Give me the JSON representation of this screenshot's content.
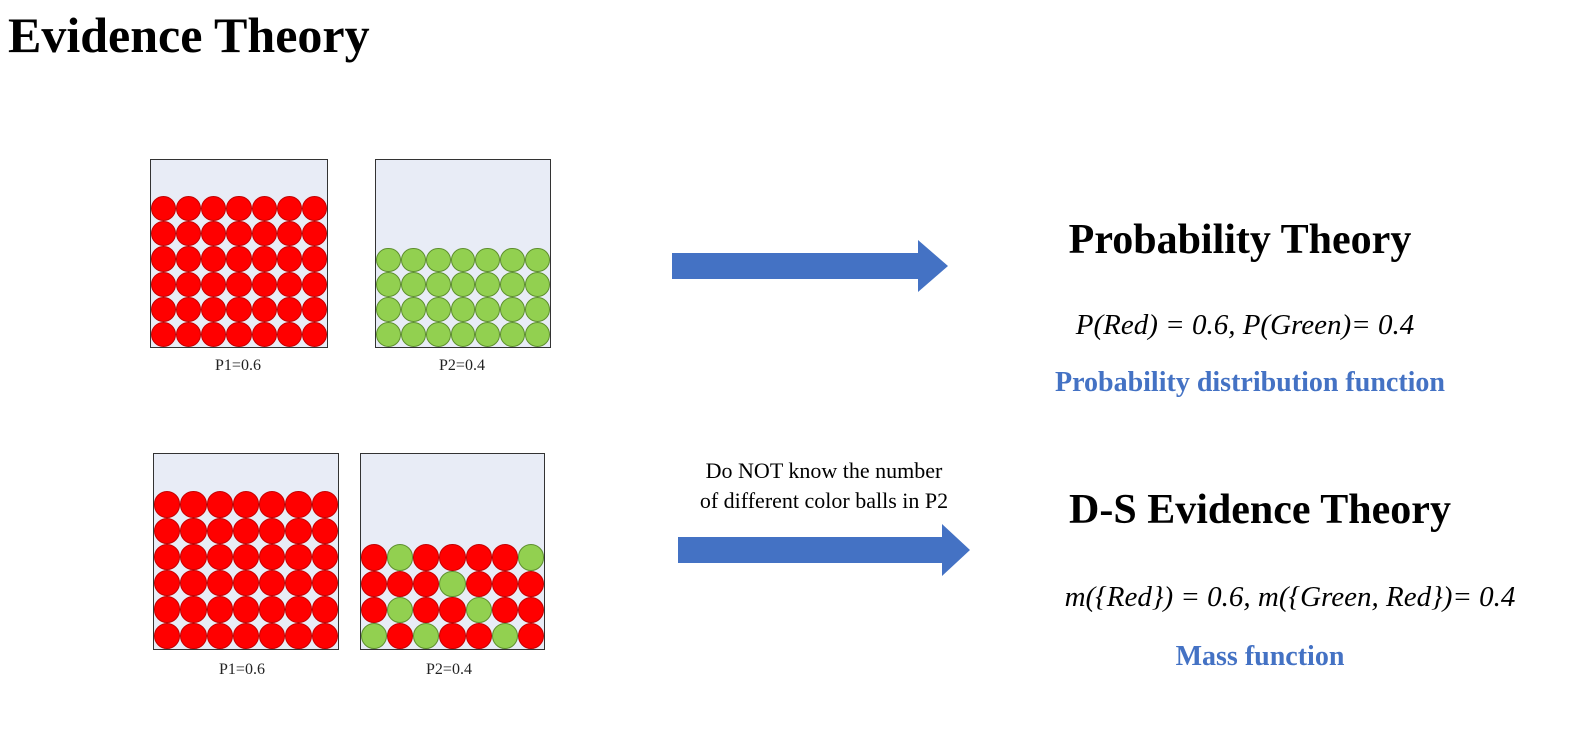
{
  "title": "Evidence Theory",
  "top_row": {
    "box1": {
      "caption": "P1=0.6"
    },
    "box2": {
      "caption": "P2=0.4"
    },
    "heading": "Probability Theory",
    "formula": "P(Red) = 0.6, P(Green)= 0.4",
    "function_label": "Probability distribution function"
  },
  "bottom_row": {
    "box1": {
      "caption": "P1=0.6"
    },
    "box2": {
      "caption": "P2=0.4"
    },
    "note_line1": "Do NOT know the number",
    "note_line2": "of different color balls in P2",
    "heading": "D-S Evidence Theory",
    "formula": "m({Red}) = 0.6, m({Green, Red})= 0.4",
    "function_label": "Mass function"
  },
  "colors": {
    "red_ball": "#ff0000",
    "green_ball": "#92d050",
    "box_fill": "#e8ecf6",
    "arrow": "#4472c4",
    "function_label": "#4472c4"
  },
  "box_contents": {
    "top_p1": [
      [
        "red",
        "red",
        "red",
        "red",
        "red",
        "red",
        "red"
      ],
      [
        "red",
        "red",
        "red",
        "red",
        "red",
        "red",
        "red"
      ],
      [
        "red",
        "red",
        "red",
        "red",
        "red",
        "red",
        "red"
      ],
      [
        "red",
        "red",
        "red",
        "red",
        "red",
        "red",
        "red"
      ],
      [
        "red",
        "red",
        "red",
        "red",
        "red",
        "red",
        "red"
      ],
      [
        "red",
        "red",
        "red",
        "red",
        "red",
        "red",
        "red"
      ]
    ],
    "top_p2": [
      [
        "green",
        "green",
        "green",
        "green",
        "green",
        "green",
        "green"
      ],
      [
        "green",
        "green",
        "green",
        "green",
        "green",
        "green",
        "green"
      ],
      [
        "green",
        "green",
        "green",
        "green",
        "green",
        "green",
        "green"
      ],
      [
        "green",
        "green",
        "green",
        "green",
        "green",
        "green",
        "green"
      ]
    ],
    "bottom_p1": [
      [
        "red",
        "red",
        "red",
        "red",
        "red",
        "red",
        "red"
      ],
      [
        "red",
        "red",
        "red",
        "red",
        "red",
        "red",
        "red"
      ],
      [
        "red",
        "red",
        "red",
        "red",
        "red",
        "red",
        "red"
      ],
      [
        "red",
        "red",
        "red",
        "red",
        "red",
        "red",
        "red"
      ],
      [
        "red",
        "red",
        "red",
        "red",
        "red",
        "red",
        "red"
      ],
      [
        "red",
        "red",
        "red",
        "red",
        "red",
        "red",
        "red"
      ]
    ],
    "bottom_p2": [
      [
        "red",
        "green",
        "red",
        "red",
        "red",
        "red",
        "green"
      ],
      [
        "red",
        "red",
        "red",
        "green",
        "red",
        "red",
        "red"
      ],
      [
        "red",
        "green",
        "red",
        "red",
        "green",
        "red",
        "red"
      ],
      [
        "green",
        "red",
        "green",
        "red",
        "red",
        "green",
        "red"
      ]
    ]
  }
}
